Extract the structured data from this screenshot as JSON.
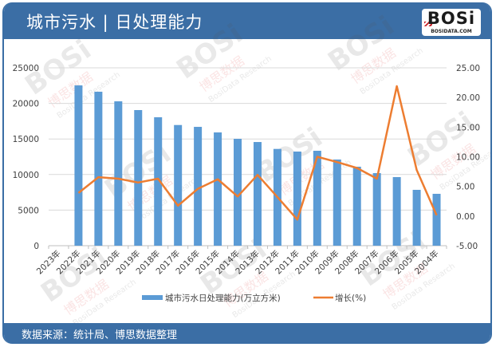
{
  "header": {
    "title": "城市污水 | 日处理能力",
    "logo_text": "BOSi",
    "logo_subtext": "BOSIDATA.COM"
  },
  "footer": {
    "source": "数据来源：统计局、博思数据整理"
  },
  "colors": {
    "header_bg": "#3b6ea5",
    "bar": "#5b9bd5",
    "line": "#ed7d31",
    "grid": "#d9d9d9"
  },
  "watermark": {
    "cn": "博思数据",
    "en": "BosiData Research"
  },
  "chart_data": {
    "type": "bar",
    "title": "城市污水 | 日处理能力",
    "categories": [
      "2023年",
      "2022年",
      "2021年",
      "2020年",
      "2019年",
      "2018年",
      "2017年",
      "2016年",
      "2015年",
      "2014年",
      "2013年",
      "2012年",
      "2011年",
      "2010年",
      "2009年",
      "2008年",
      "2007年",
      "2006年",
      "2005年",
      "2004年"
    ],
    "series": [
      {
        "name": "城市污水日处理能力(万立方米)",
        "type": "bar",
        "axis": "left",
        "values": [
          null,
          22530,
          21640,
          20290,
          19060,
          18050,
          16960,
          16700,
          15920,
          15020,
          14570,
          13600,
          13230,
          13340,
          12110,
          11100,
          10200,
          9640,
          7850,
          7290
        ]
      },
      {
        "name": "增长(%)",
        "type": "line",
        "axis": "right",
        "values": [
          null,
          3.9,
          6.55,
          6.3,
          5.65,
          6.3,
          1.75,
          4.6,
          6.2,
          3.3,
          6.95,
          3.2,
          -0.6,
          10.0,
          9.1,
          8.1,
          6.3,
          21.9,
          7.76,
          0.13
        ]
      }
    ],
    "left_axis": {
      "min": 0,
      "max": 25000,
      "step": 5000,
      "ticks": [
        "0",
        "5000",
        "10000",
        "15000",
        "20000",
        "25000"
      ]
    },
    "right_axis": {
      "min": -5,
      "max": 25,
      "step": 5,
      "ticks": [
        "-5.00",
        "0.00",
        "5.00",
        "10.00",
        "15.00",
        "20.00",
        "25.00"
      ]
    },
    "xlabel": "",
    "ylabel": "",
    "grid": true,
    "legend_position": "bottom",
    "legend": [
      "城市污水日处理能力(万立方米)",
      "增长(%)"
    ]
  }
}
